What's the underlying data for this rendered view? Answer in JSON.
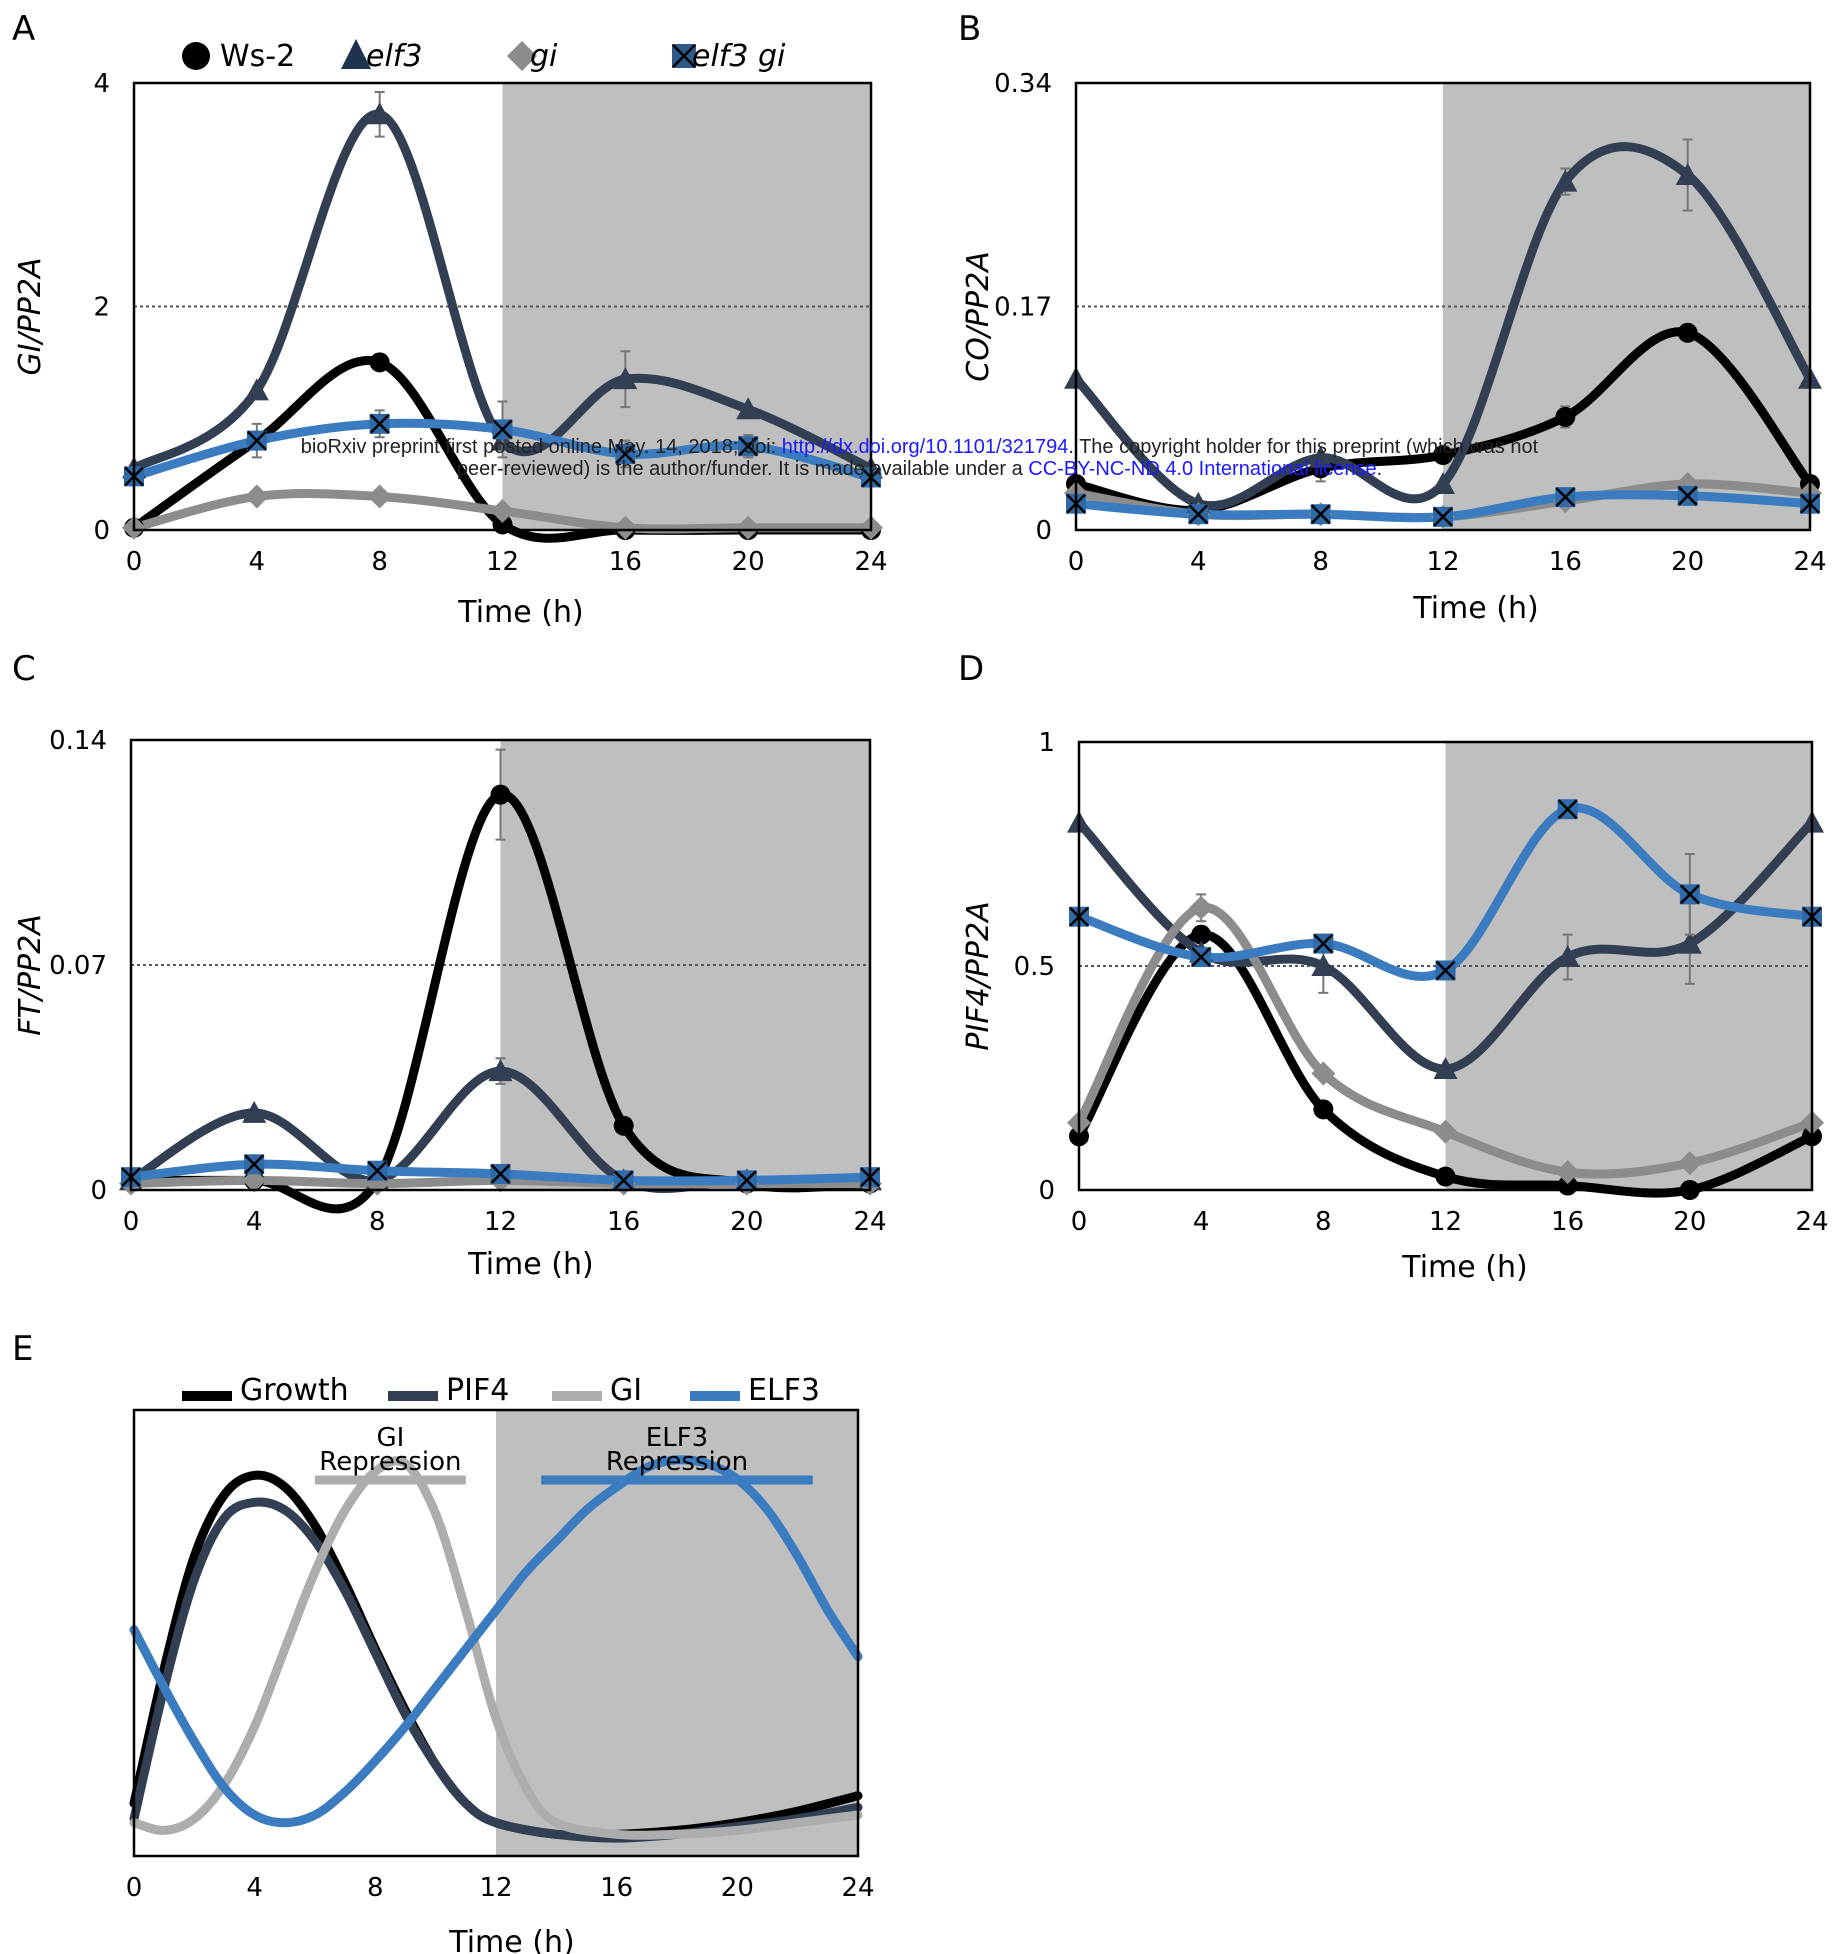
{
  "watermark": {
    "line1_pre": "bioRxiv preprint first posted online May. 14, 2018; doi: ",
    "line1_link": "http://dx.doi.org/10.1101/321794",
    "line1_post": ". The copyright holder for this preprint (which was not",
    "line2_pre": "peer-reviewed) is the author/funder. It is made available under a ",
    "line2_link": "CC-BY-NC-ND 4.0 International license",
    "line2_post": "."
  },
  "colors": {
    "ws2": "#000000",
    "elf3": "#323e52",
    "gi": "#8c8c8c",
    "elf3gi": "#3a7cbf",
    "night": "#bfbfbf",
    "pif4": "#323e52",
    "gi_model": "#adadad",
    "elf3_model": "#3a7cbf"
  },
  "legend_top": [
    {
      "label": "Ws-2",
      "marker": "circle",
      "color": "#000000",
      "italic": false
    },
    {
      "label": "elf3",
      "marker": "triangle",
      "color": "#1f3350",
      "italic": true
    },
    {
      "label": "gi",
      "marker": "diamond",
      "color": "#8c8c8c",
      "italic": true
    },
    {
      "label": "elf3 gi",
      "marker": "x-square",
      "color": "#2e5a8a",
      "italic": true
    }
  ],
  "chart_data": [
    {
      "panel": "A",
      "type": "line",
      "ylabel": "GI/PP2A",
      "xlabel": "Time (h)",
      "x": [
        0,
        4,
        8,
        12,
        16,
        20,
        24
      ],
      "xticks": [
        "0",
        "4",
        "8",
        "12",
        "16",
        "20",
        "24"
      ],
      "ylim": [
        0,
        4
      ],
      "yticks": [
        "0",
        "2",
        "4"
      ],
      "reference_line": 2,
      "night": [
        12,
        24
      ],
      "series": [
        {
          "name": "Ws-2",
          "values": [
            0.02,
            0.8,
            1.5,
            0.05,
            0.0,
            0.0,
            0.0
          ],
          "errors": [
            0,
            0,
            0,
            0,
            0,
            0,
            0
          ]
        },
        {
          "name": "elf3",
          "values": [
            0.55,
            1.25,
            3.72,
            0.8,
            1.35,
            1.08,
            0.55
          ],
          "errors": [
            0,
            0,
            0.2,
            0,
            0.25,
            0,
            0
          ]
        },
        {
          "name": "gi",
          "values": [
            0.02,
            0.3,
            0.3,
            0.17,
            0.02,
            0.02,
            0.02
          ],
          "errors": [
            0,
            0,
            0,
            0,
            0,
            0,
            0
          ]
        },
        {
          "name": "elf3 gi",
          "values": [
            0.48,
            0.8,
            0.95,
            0.9,
            0.68,
            0.75,
            0.47
          ],
          "errors": [
            0,
            0.15,
            0.12,
            0.25,
            0.12,
            0.1,
            0
          ]
        }
      ]
    },
    {
      "panel": "B",
      "type": "line",
      "ylabel": "CO/PP2A",
      "xlabel": "Time (h)",
      "x": [
        0,
        4,
        8,
        12,
        16,
        20,
        24
      ],
      "xticks": [
        "0",
        "4",
        "8",
        "12",
        "16",
        "20",
        "24"
      ],
      "ylim": [
        0,
        0.34
      ],
      "yticks": [
        "0",
        "0.17",
        "0.34"
      ],
      "reference_line": 0.17,
      "night": [
        12,
        24
      ],
      "series": [
        {
          "name": "Ws-2",
          "values": [
            0.035,
            0.015,
            0.047,
            0.057,
            0.086,
            0.15,
            0.035
          ],
          "errors": [
            0,
            0,
            0.01,
            0,
            0.008,
            0,
            0
          ]
        },
        {
          "name": "elf3",
          "values": [
            0.115,
            0.02,
            0.055,
            0.035,
            0.265,
            0.27,
            0.115
          ],
          "errors": [
            0,
            0,
            0,
            0,
            0.01,
            0.027,
            0
          ]
        },
        {
          "name": "gi",
          "values": [
            0.028,
            0.012,
            0.012,
            0.01,
            0.022,
            0.035,
            0.028
          ],
          "errors": [
            0,
            0,
            0,
            0,
            0,
            0,
            0
          ]
        },
        {
          "name": "elf3 gi",
          "values": [
            0.02,
            0.012,
            0.012,
            0.01,
            0.025,
            0.026,
            0.02
          ],
          "errors": [
            0,
            0,
            0,
            0,
            0,
            0,
            0
          ]
        }
      ]
    },
    {
      "panel": "C",
      "type": "line",
      "ylabel": "FT/PP2A",
      "xlabel": "Time (h)",
      "x": [
        0,
        4,
        8,
        12,
        16,
        20,
        24
      ],
      "xticks": [
        "0",
        "4",
        "8",
        "12",
        "16",
        "20",
        "24"
      ],
      "ylim": [
        0,
        0.14
      ],
      "yticks": [
        "0",
        "0.07",
        "0.14"
      ],
      "reference_line": 0.07,
      "night": [
        12,
        24
      ],
      "series": [
        {
          "name": "Ws-2",
          "values": [
            0.003,
            0.003,
            0.003,
            0.123,
            0.02,
            0.002,
            0.002
          ],
          "errors": [
            0,
            0,
            0,
            0.014,
            0,
            0,
            0
          ]
        },
        {
          "name": "elf3",
          "values": [
            0.003,
            0.024,
            0.003,
            0.037,
            0.003,
            0.003,
            0.003
          ],
          "errors": [
            0,
            0,
            0,
            0.004,
            0,
            0,
            0
          ]
        },
        {
          "name": "gi",
          "values": [
            0.002,
            0.003,
            0.002,
            0.003,
            0.002,
            0.002,
            0.002
          ],
          "errors": [
            0,
            0,
            0,
            0,
            0,
            0,
            0
          ]
        },
        {
          "name": "elf3 gi",
          "values": [
            0.004,
            0.008,
            0.006,
            0.005,
            0.003,
            0.003,
            0.004
          ],
          "errors": [
            0,
            0,
            0,
            0,
            0,
            0,
            0
          ]
        }
      ]
    },
    {
      "panel": "D",
      "type": "line",
      "ylabel": "PIF4/PP2A",
      "xlabel": "Time (h)",
      "x": [
        0,
        4,
        8,
        12,
        16,
        20,
        24
      ],
      "xticks": [
        "0",
        "4",
        "8",
        "12",
        "16",
        "20",
        "24"
      ],
      "ylim": [
        0,
        1
      ],
      "yticks": [
        "0",
        "0.5",
        "1"
      ],
      "reference_line": 0.5,
      "night": [
        12,
        24
      ],
      "series": [
        {
          "name": "Ws-2",
          "values": [
            0.12,
            0.57,
            0.18,
            0.03,
            0.01,
            0.0,
            0.12
          ],
          "errors": [
            0,
            0,
            0,
            0,
            0,
            0,
            0
          ]
        },
        {
          "name": "elf3",
          "values": [
            0.82,
            0.53,
            0.5,
            0.27,
            0.52,
            0.55,
            0.82
          ],
          "errors": [
            0,
            0,
            0.06,
            0,
            0.05,
            0.09,
            0
          ]
        },
        {
          "name": "gi",
          "values": [
            0.15,
            0.63,
            0.26,
            0.13,
            0.04,
            0.06,
            0.15
          ],
          "errors": [
            0,
            0.03,
            0,
            0,
            0,
            0,
            0
          ]
        },
        {
          "name": "elf3 gi",
          "values": [
            0.61,
            0.52,
            0.55,
            0.49,
            0.85,
            0.66,
            0.61
          ],
          "errors": [
            0,
            0,
            0.02,
            0,
            0,
            0.09,
            0
          ]
        }
      ]
    },
    {
      "panel": "E",
      "type": "line",
      "xlabel": "Time (h)",
      "xticks": [
        "0",
        "4",
        "8",
        "12",
        "16",
        "20",
        "24"
      ],
      "xlim": [
        0,
        24
      ],
      "ylim": [
        0,
        1
      ],
      "night": [
        12,
        24
      ],
      "series": [
        {
          "name": "Growth",
          "x": [
            0,
            1,
            2,
            3,
            4,
            5,
            6,
            7,
            8,
            9,
            10,
            11,
            12,
            14,
            16,
            18,
            20,
            22,
            24
          ],
          "values": [
            0.1,
            0.45,
            0.74,
            0.9,
            0.95,
            0.92,
            0.82,
            0.67,
            0.5,
            0.34,
            0.2,
            0.1,
            0.05,
            0.02,
            0.02,
            0.03,
            0.05,
            0.08,
            0.12
          ]
        },
        {
          "name": "PIF4",
          "x": [
            0,
            1,
            2,
            3,
            4,
            5,
            6,
            7,
            8,
            9,
            10,
            11,
            12,
            14,
            16,
            18,
            20,
            22,
            24
          ],
          "values": [
            0.06,
            0.4,
            0.68,
            0.84,
            0.88,
            0.86,
            0.78,
            0.65,
            0.49,
            0.33,
            0.2,
            0.1,
            0.05,
            0.02,
            0.01,
            0.02,
            0.04,
            0.06,
            0.09
          ]
        },
        {
          "name": "GI",
          "x": [
            0,
            1,
            2,
            3,
            4,
            5,
            6,
            7,
            8,
            9,
            10,
            11,
            12,
            13,
            14,
            16,
            18,
            20,
            22,
            24
          ],
          "values": [
            0.05,
            0.03,
            0.06,
            0.15,
            0.3,
            0.5,
            0.7,
            0.86,
            0.96,
            0.98,
            0.85,
            0.6,
            0.32,
            0.14,
            0.05,
            0.02,
            0.02,
            0.03,
            0.05,
            0.07
          ]
        },
        {
          "name": "ELF3",
          "x": [
            0,
            1,
            2,
            3,
            4,
            5,
            6,
            7,
            8,
            9,
            10,
            11,
            12,
            13,
            14,
            15,
            16,
            17,
            18,
            19,
            20,
            21,
            22,
            23,
            24
          ],
          "values": [
            0.55,
            0.4,
            0.26,
            0.14,
            0.07,
            0.05,
            0.07,
            0.13,
            0.21,
            0.3,
            0.4,
            0.5,
            0.6,
            0.7,
            0.78,
            0.86,
            0.92,
            0.97,
            0.99,
            0.98,
            0.94,
            0.86,
            0.74,
            0.6,
            0.48
          ]
        }
      ],
      "annotations": [
        {
          "text_line1": "GI",
          "text_line2": "Repression",
          "bar_x": [
            6,
            11
          ],
          "color": "#adadad"
        },
        {
          "text_line1": "ELF3",
          "text_line2": "Repression",
          "bar_x": [
            13.5,
            22.5
          ],
          "color": "#3a7cbf"
        }
      ],
      "legend": [
        {
          "label": "Growth",
          "color": "#000000"
        },
        {
          "label": "PIF4",
          "color": "#323e52"
        },
        {
          "label": "GI",
          "color": "#adadad"
        },
        {
          "label": "ELF3",
          "color": "#3a7cbf"
        }
      ]
    }
  ]
}
